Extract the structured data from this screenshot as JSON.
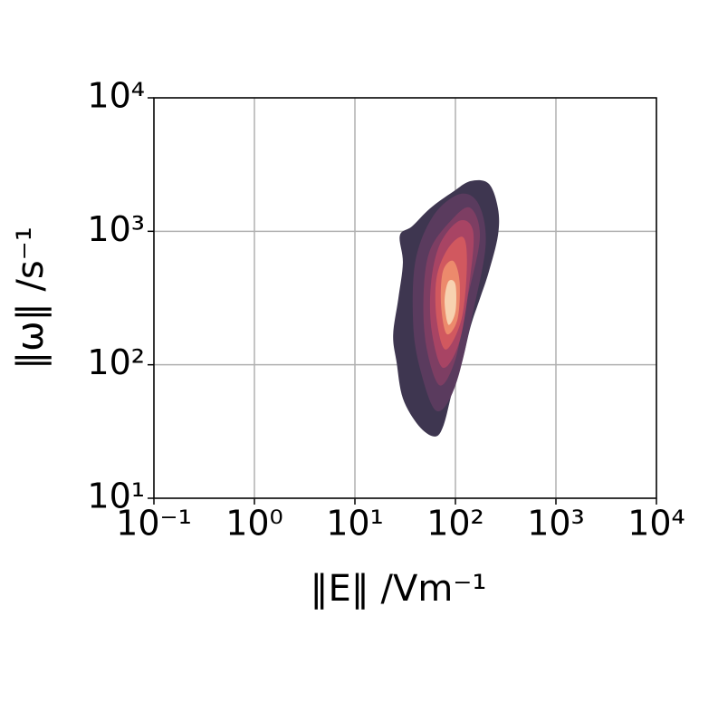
{
  "chart_data": {
    "type": "kde",
    "xlabel": "‖E‖ /Vm⁻¹",
    "ylabel": "‖ω‖ /s⁻¹",
    "xscale": "log",
    "yscale": "log",
    "grid": true,
    "xlim": [
      0.1,
      10000
    ],
    "ylim": [
      10,
      10000
    ],
    "xticks": [
      {
        "value": 0.1,
        "label": "10⁻¹"
      },
      {
        "value": 1,
        "label": "10⁰"
      },
      {
        "value": 10,
        "label": "10¹"
      },
      {
        "value": 100,
        "label": "10²"
      },
      {
        "value": 1000,
        "label": "10³"
      },
      {
        "value": 10000,
        "label": "10⁴"
      }
    ],
    "yticks": [
      {
        "value": 10,
        "label": "10¹"
      },
      {
        "value": 100,
        "label": "10²"
      },
      {
        "value": 1000,
        "label": "10³"
      },
      {
        "value": 10000,
        "label": "10⁴"
      }
    ],
    "contours": [
      {
        "color": "#3e3650",
        "x": [
          62,
          43,
          30,
          26,
          24,
          27,
          30,
          28,
          37,
          56,
          94,
          142,
          215,
          265,
          265,
          215,
          175,
          142,
          116,
          94,
          76
        ],
        "y": [
          29,
          35,
          56,
          104,
          167,
          312,
          582,
          931,
          1089,
          1486,
          1972,
          2377,
          2270,
          1486,
          931,
          498,
          312,
          195,
          104,
          65,
          35
        ]
      },
      {
        "color": "#5a3b5e",
        "x": [
          65,
          45,
          38,
          40,
          60,
          110,
          170,
          200,
          150,
          100
        ],
        "y": [
          45,
          90,
          200,
          600,
          1300,
          1900,
          1600,
          800,
          250,
          70
        ]
      },
      {
        "color": "#7d3e63",
        "x": [
          70,
          52,
          48,
          55,
          90,
          140,
          175,
          130,
          100
        ],
        "y": [
          70,
          130,
          300,
          700,
          1200,
          1500,
          900,
          300,
          110
        ]
      },
      {
        "color": "#a84464",
        "x": [
          75,
          58,
          57,
          70,
          110,
          150,
          140,
          110
        ],
        "y": [
          95,
          180,
          400,
          800,
          1200,
          1000,
          450,
          150
        ]
      },
      {
        "color": "#d1585f",
        "x": [
          80,
          65,
          65,
          85,
          120,
          130,
          115
        ],
        "y": [
          130,
          220,
          450,
          750,
          900,
          550,
          220
        ]
      },
      {
        "color": "#ec8a6c",
        "x": [
          82,
          72,
          75,
          95,
          110,
          105
        ],
        "y": [
          170,
          280,
          500,
          600,
          420,
          220
        ]
      },
      {
        "color": "#f7d2b0",
        "x": [
          85,
          78,
          85,
          100,
          100
        ],
        "y": [
          200,
          300,
          420,
          400,
          250
        ]
      }
    ]
  }
}
